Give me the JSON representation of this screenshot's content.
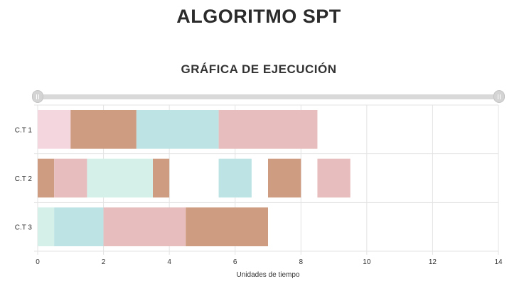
{
  "page": {
    "title": "ALGORITMO SPT",
    "subtitle": "GRÁFICA DE EJECUCIÓN"
  },
  "chart_data": {
    "type": "timeline",
    "xlabel": "Unidades de tiempo",
    "xlim": [
      0,
      14
    ],
    "xticks": [
      0,
      2,
      4,
      6,
      8,
      10,
      12,
      14
    ],
    "rows": [
      {
        "label": "C.T 1",
        "segments": [
          {
            "start": 0,
            "end": 1,
            "color": "#f4d6df"
          },
          {
            "start": 1,
            "end": 3,
            "color": "#ce9c81"
          },
          {
            "start": 3,
            "end": 5.5,
            "color": "#bde3e5"
          },
          {
            "start": 5.5,
            "end": 8.5,
            "color": "#e7bdbd"
          }
        ]
      },
      {
        "label": "C.T 2",
        "segments": [
          {
            "start": 0,
            "end": 0.5,
            "color": "#ce9c81"
          },
          {
            "start": 0.5,
            "end": 1.5,
            "color": "#e7bdbd"
          },
          {
            "start": 1.5,
            "end": 3.5,
            "color": "#d4f0e8"
          },
          {
            "start": 3.5,
            "end": 4,
            "color": "#ce9c81"
          },
          {
            "start": 5.5,
            "end": 6.5,
            "color": "#bde3e5"
          },
          {
            "start": 7,
            "end": 8,
            "color": "#ce9c81"
          },
          {
            "start": 8.5,
            "end": 9.5,
            "color": "#e7bdbd"
          }
        ]
      },
      {
        "label": "C.T 3",
        "segments": [
          {
            "start": 0,
            "end": 0.5,
            "color": "#d4f0e8"
          },
          {
            "start": 0.5,
            "end": 2,
            "color": "#bde3e5"
          },
          {
            "start": 2,
            "end": 4.5,
            "color": "#e7bdbd"
          },
          {
            "start": 4.5,
            "end": 7,
            "color": "#ce9c81"
          }
        ]
      }
    ]
  }
}
